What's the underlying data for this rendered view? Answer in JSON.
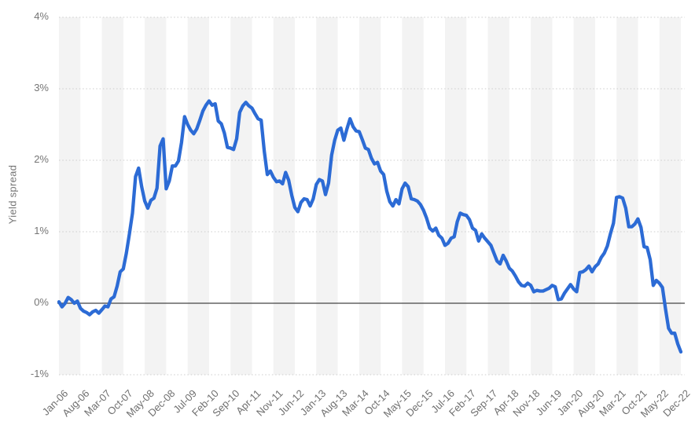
{
  "chart_data": {
    "type": "line",
    "ylabel": "Yield spread",
    "x_start": "Jan-06",
    "x_end": "Dec-22",
    "x_frequency": "monthly",
    "x_tick_interval_months": 7,
    "x_tick_labels": [
      "Jan-06",
      "Aug-06",
      "Mar-07",
      "Oct-07",
      "May-08",
      "Dec-08",
      "Jul-09",
      "Feb-10",
      "Sep-10",
      "Apr-11",
      "Nov-11",
      "Jun-12",
      "Jan-13",
      "Aug-13",
      "Mar-14",
      "Oct-14",
      "May-15",
      "Dec-15",
      "Jul-16",
      "Feb-17",
      "Sep-17",
      "Apr-18",
      "Nov-18",
      "Jun-19",
      "Jan-20",
      "Aug-20",
      "Mar-21",
      "Oct-21",
      "May-22",
      "Dec-22"
    ],
    "y_tick_labels": [
      "4%",
      "3%",
      "2%",
      "1%",
      "0%",
      "-1%"
    ],
    "y_tick_values": [
      4,
      3,
      2,
      1,
      0,
      -1
    ],
    "ylim": [
      -1,
      4
    ],
    "grid": "horizontal-dotted",
    "zero_line": true,
    "legend": "none",
    "background_bands": "alternating vertical bands, one per 7-month tick interval, starting shaded at Jan-06",
    "series": [
      {
        "name": "Yield spread",
        "unit": "%",
        "values": [
          0.02,
          -0.05,
          0,
          0.08,
          0.05,
          0,
          0.03,
          -0.07,
          -0.11,
          -0.13,
          -0.16,
          -0.12,
          -0.1,
          -0.14,
          -0.09,
          -0.04,
          -0.05,
          0.06,
          0.09,
          0.24,
          0.44,
          0.48,
          0.7,
          0.97,
          1.26,
          1.77,
          1.89,
          1.63,
          1.43,
          1.33,
          1.44,
          1.47,
          1.61,
          2.2,
          2.3,
          1.6,
          1.71,
          1.92,
          1.92,
          1.99,
          2.25,
          2.61,
          2.5,
          2.42,
          2.37,
          2.44,
          2.56,
          2.69,
          2.77,
          2.83,
          2.77,
          2.79,
          2.55,
          2.51,
          2.38,
          2.18,
          2.17,
          2.15,
          2.3,
          2.67,
          2.76,
          2.81,
          2.76,
          2.73,
          2.65,
          2.58,
          2.56,
          2.13,
          1.8,
          1.85,
          1.76,
          1.7,
          1.71,
          1.67,
          1.83,
          1.72,
          1.51,
          1.34,
          1.28,
          1.41,
          1.46,
          1.45,
          1.36,
          1.46,
          1.66,
          1.73,
          1.71,
          1.52,
          1.68,
          2.07,
          2.28,
          2.42,
          2.45,
          2.28,
          2.44,
          2.58,
          2.47,
          2.41,
          2.4,
          2.29,
          2.17,
          2.15,
          2.03,
          1.95,
          1.97,
          1.85,
          1.8,
          1.57,
          1.42,
          1.36,
          1.45,
          1.39,
          1.6,
          1.68,
          1.63,
          1.46,
          1.45,
          1.43,
          1.38,
          1.3,
          1.19,
          1.05,
          1.01,
          1.05,
          0.95,
          0.91,
          0.81,
          0.84,
          0.91,
          0.93,
          1.14,
          1.26,
          1.24,
          1.23,
          1.17,
          1.05,
          1.02,
          0.87,
          0.97,
          0.91,
          0.86,
          0.81,
          0.7,
          0.59,
          0.55,
          0.67,
          0.59,
          0.49,
          0.45,
          0.38,
          0.3,
          0.25,
          0.24,
          0.28,
          0.25,
          0.16,
          0.18,
          0.17,
          0.17,
          0.19,
          0.21,
          0.25,
          0.23,
          0.05,
          0.06,
          0.14,
          0.2,
          0.26,
          0.2,
          0.16,
          0.43,
          0.44,
          0.47,
          0.52,
          0.44,
          0.51,
          0.55,
          0.64,
          0.7,
          0.8,
          0.97,
          1.12,
          1.48,
          1.49,
          1.47,
          1.33,
          1.07,
          1.07,
          1.11,
          1.18,
          1.06,
          0.79,
          0.78,
          0.61,
          0.25,
          0.32,
          0.28,
          0.22,
          -0.08,
          -0.35,
          -0.42,
          -0.42,
          -0.57,
          -0.68
        ]
      }
    ],
    "colors": {
      "line": "#2c6bd5",
      "band": "#f3f3f3",
      "grid": "#cccccc",
      "zero_line": "#444444",
      "axis_text": "#757575"
    }
  }
}
